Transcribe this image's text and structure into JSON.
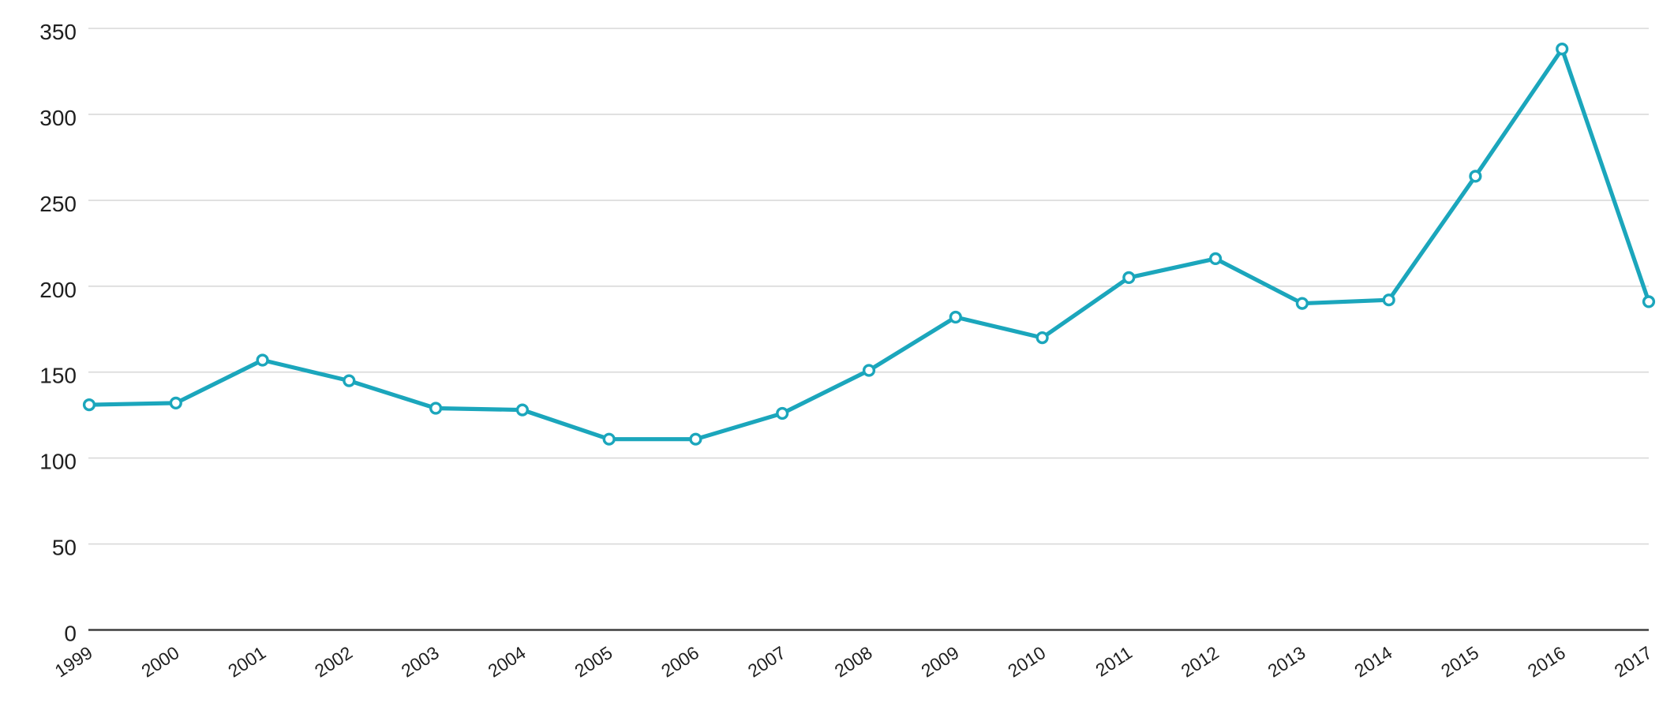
{
  "chart_data": {
    "type": "line",
    "categories": [
      "1999",
      "2000",
      "2001",
      "2002",
      "2003",
      "2004",
      "2005",
      "2006",
      "2007",
      "2008",
      "2009",
      "2010",
      "2011",
      "2012",
      "2013",
      "2014",
      "2015",
      "2016",
      "2017"
    ],
    "series": [
      {
        "name": "series-1",
        "values": [
          131,
          132,
          157,
          145,
          129,
          128,
          111,
          111,
          126,
          151,
          182,
          170,
          205,
          216,
          190,
          192,
          264,
          338,
          191
        ]
      }
    ],
    "title": "",
    "xlabel": "",
    "ylabel": "",
    "ylim": [
      0,
      350
    ],
    "yticks": [
      0,
      50,
      100,
      150,
      200,
      250,
      300,
      350
    ],
    "grid": "horizontal-only",
    "legend": "none",
    "marker_style": "open-circle",
    "x_tick_rotation_deg": -33,
    "colors": {
      "line": "#1BA6BC",
      "marker_fill": "#FFFFFF",
      "marker_stroke": "#1BA6BC",
      "gridline": "#D9D9D9",
      "axis_line": "#3F3F3F",
      "tick_label": "#1F1F1F",
      "background": "#FFFFFF"
    }
  }
}
